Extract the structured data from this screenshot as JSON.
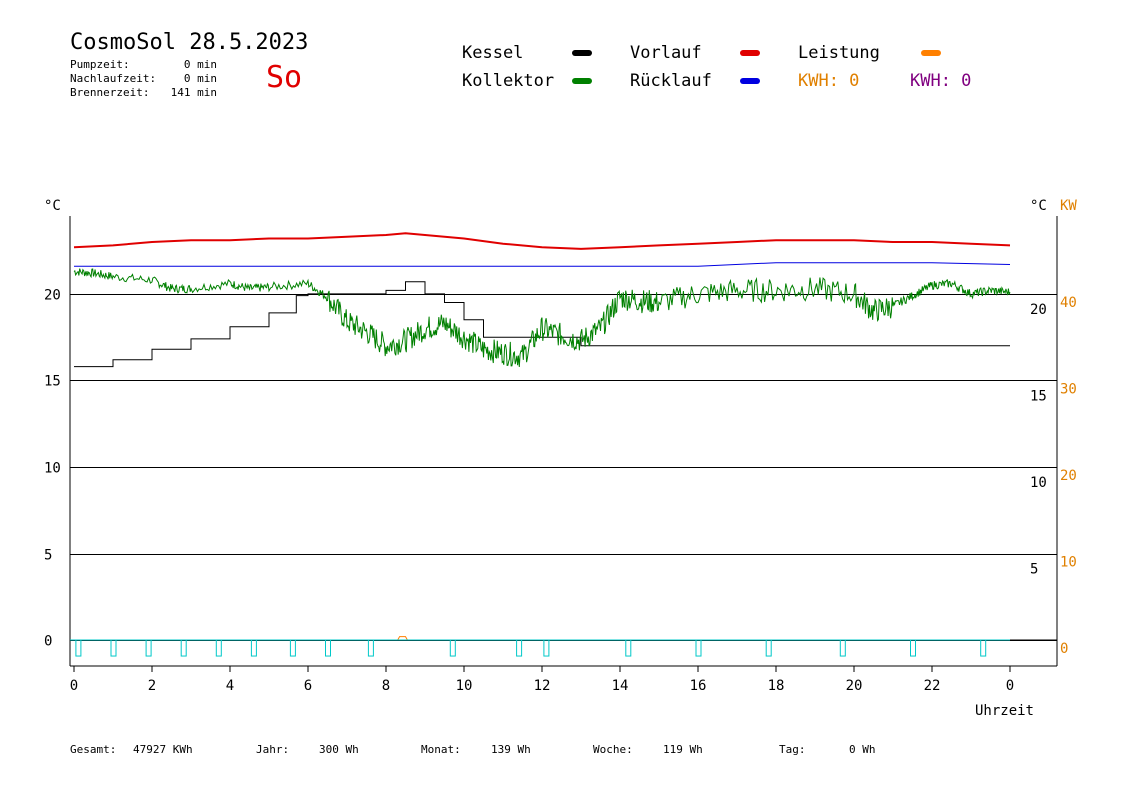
{
  "header": {
    "title": "CosmoSol 28.5.2023",
    "day": "So",
    "stats": [
      {
        "label": "Pumpzeit:",
        "value": "0 min"
      },
      {
        "label": "Nachlaufzeit:",
        "value": "0 min"
      },
      {
        "label": "Brennerzeit:",
        "value": "141 min"
      }
    ]
  },
  "legend": {
    "kessel": {
      "label": "Kessel",
      "color": "#000000"
    },
    "kollektor": {
      "label": "Kollektor",
      "color": "#008000"
    },
    "vorlauf": {
      "label": "Vorlauf",
      "color": "#e00000"
    },
    "ruecklauf": {
      "label": "Rücklauf",
      "color": "#0000e0"
    },
    "leistung": {
      "label": "Leistung",
      "color": "#ff8000"
    },
    "kwh1": {
      "label": "KWH: 0",
      "color": "#e08000"
    },
    "kwh2": {
      "label": "KWH: 0",
      "color": "#800080"
    }
  },
  "footer": [
    {
      "label": "Gesamt:",
      "value": "47927 KWh"
    },
    {
      "label": "Jahr:",
      "value": "300 Wh"
    },
    {
      "label": "Monat:",
      "value": "139 Wh"
    },
    {
      "label": "Woche:",
      "value": "119 Wh"
    },
    {
      "label": "Tag:",
      "value": "0 Wh"
    }
  ],
  "chart_data": {
    "type": "line",
    "xlabel": "Uhrzeit",
    "ylabel_left": "°C",
    "ylabel_right": "°C",
    "ylabel_right2": "KW",
    "xlim": [
      0,
      24
    ],
    "ylim": [
      -1.5,
      24.5
    ],
    "x_ticks": [
      "0",
      "2",
      "4",
      "6",
      "8",
      "10",
      "12",
      "14",
      "16",
      "18",
      "20",
      "22",
      "0"
    ],
    "y_ticks_left": [
      0,
      5,
      10,
      15,
      20
    ],
    "y_ticks_right": [
      5,
      10,
      15,
      20
    ],
    "y_ticks_right_kw": [
      0,
      10,
      20,
      30,
      40
    ],
    "grid": true,
    "series": [
      {
        "name": "Vorlauf",
        "color": "#e00000",
        "x": [
          0,
          1,
          2,
          3,
          4,
          5,
          6,
          7,
          8,
          8.5,
          9,
          10,
          11,
          12,
          13,
          14,
          15,
          16,
          17,
          18,
          19,
          20,
          21,
          22,
          23,
          24
        ],
        "y": [
          22.7,
          22.8,
          23.0,
          23.1,
          23.1,
          23.2,
          23.2,
          23.3,
          23.4,
          23.5,
          23.4,
          23.2,
          22.9,
          22.7,
          22.6,
          22.7,
          22.8,
          22.9,
          23.0,
          23.1,
          23.1,
          23.1,
          23.0,
          23.0,
          22.9,
          22.8
        ]
      },
      {
        "name": "Rücklauf",
        "color": "#0000e0",
        "x": [
          0,
          2,
          4,
          6,
          8,
          10,
          12,
          14,
          16,
          18,
          20,
          22,
          24
        ],
        "y": [
          21.6,
          21.6,
          21.6,
          21.6,
          21.6,
          21.6,
          21.6,
          21.6,
          21.6,
          21.8,
          21.8,
          21.8,
          21.7
        ]
      },
      {
        "name": "Kessel",
        "color": "#000000",
        "x": [
          0,
          1,
          2,
          3,
          4,
          5,
          5.7,
          6,
          7,
          7.9,
          8,
          8.5,
          9,
          9.5,
          10,
          10.5,
          11,
          11.5,
          12,
          13,
          14,
          16,
          18,
          20,
          22,
          24
        ],
        "y": [
          15.8,
          16.2,
          16.8,
          17.4,
          18.1,
          18.9,
          19.9,
          20.0,
          20.0,
          20.0,
          20.2,
          20.7,
          20.0,
          19.5,
          18.5,
          17.5,
          17.5,
          17.5,
          17.5,
          17.0,
          17.0,
          17.0,
          17.0,
          17.0,
          17.0,
          17.0
        ]
      },
      {
        "name": "Kollektor",
        "color": "#008000",
        "x": [
          0,
          0.5,
          1,
          2,
          2.5,
          3,
          4,
          4.5,
          5,
          6,
          6.5,
          7,
          7.5,
          8,
          8.5,
          9,
          9.5,
          10,
          10.5,
          11,
          11.5,
          12,
          12.5,
          13,
          13.5,
          14,
          14.5,
          15,
          16,
          17,
          18,
          19,
          20,
          20.5,
          21,
          21.5,
          22,
          22.5,
          23,
          23.5,
          24
        ],
        "y": [
          21.3,
          21.2,
          21.0,
          20.8,
          20.3,
          20.3,
          20.6,
          20.3,
          20.4,
          20.6,
          19.8,
          18.4,
          17.8,
          17.0,
          17.3,
          18.0,
          18.3,
          17.5,
          16.8,
          16.6,
          16.4,
          18.0,
          17.6,
          17.3,
          18.0,
          19.8,
          19.6,
          19.5,
          20.0,
          20.2,
          20.2,
          20.3,
          20.0,
          19.0,
          19.3,
          19.9,
          20.5,
          20.6,
          20.0,
          20.2,
          20.1
        ]
      },
      {
        "name": "Leistung",
        "color": "#ff8000",
        "x": [
          0,
          8.3,
          8.35,
          8.5,
          8.55,
          24
        ],
        "y": [
          0,
          0,
          0.2,
          0.2,
          0,
          0
        ]
      }
    ],
    "pump_pulses": {
      "color": "#00c8c8",
      "at": [
        0.1,
        1.0,
        1.9,
        2.8,
        3.7,
        4.6,
        5.6,
        6.5,
        7.6,
        9.7,
        11.4,
        12.1,
        14.2,
        16.0,
        17.8,
        19.7,
        21.5,
        23.3
      ]
    }
  }
}
